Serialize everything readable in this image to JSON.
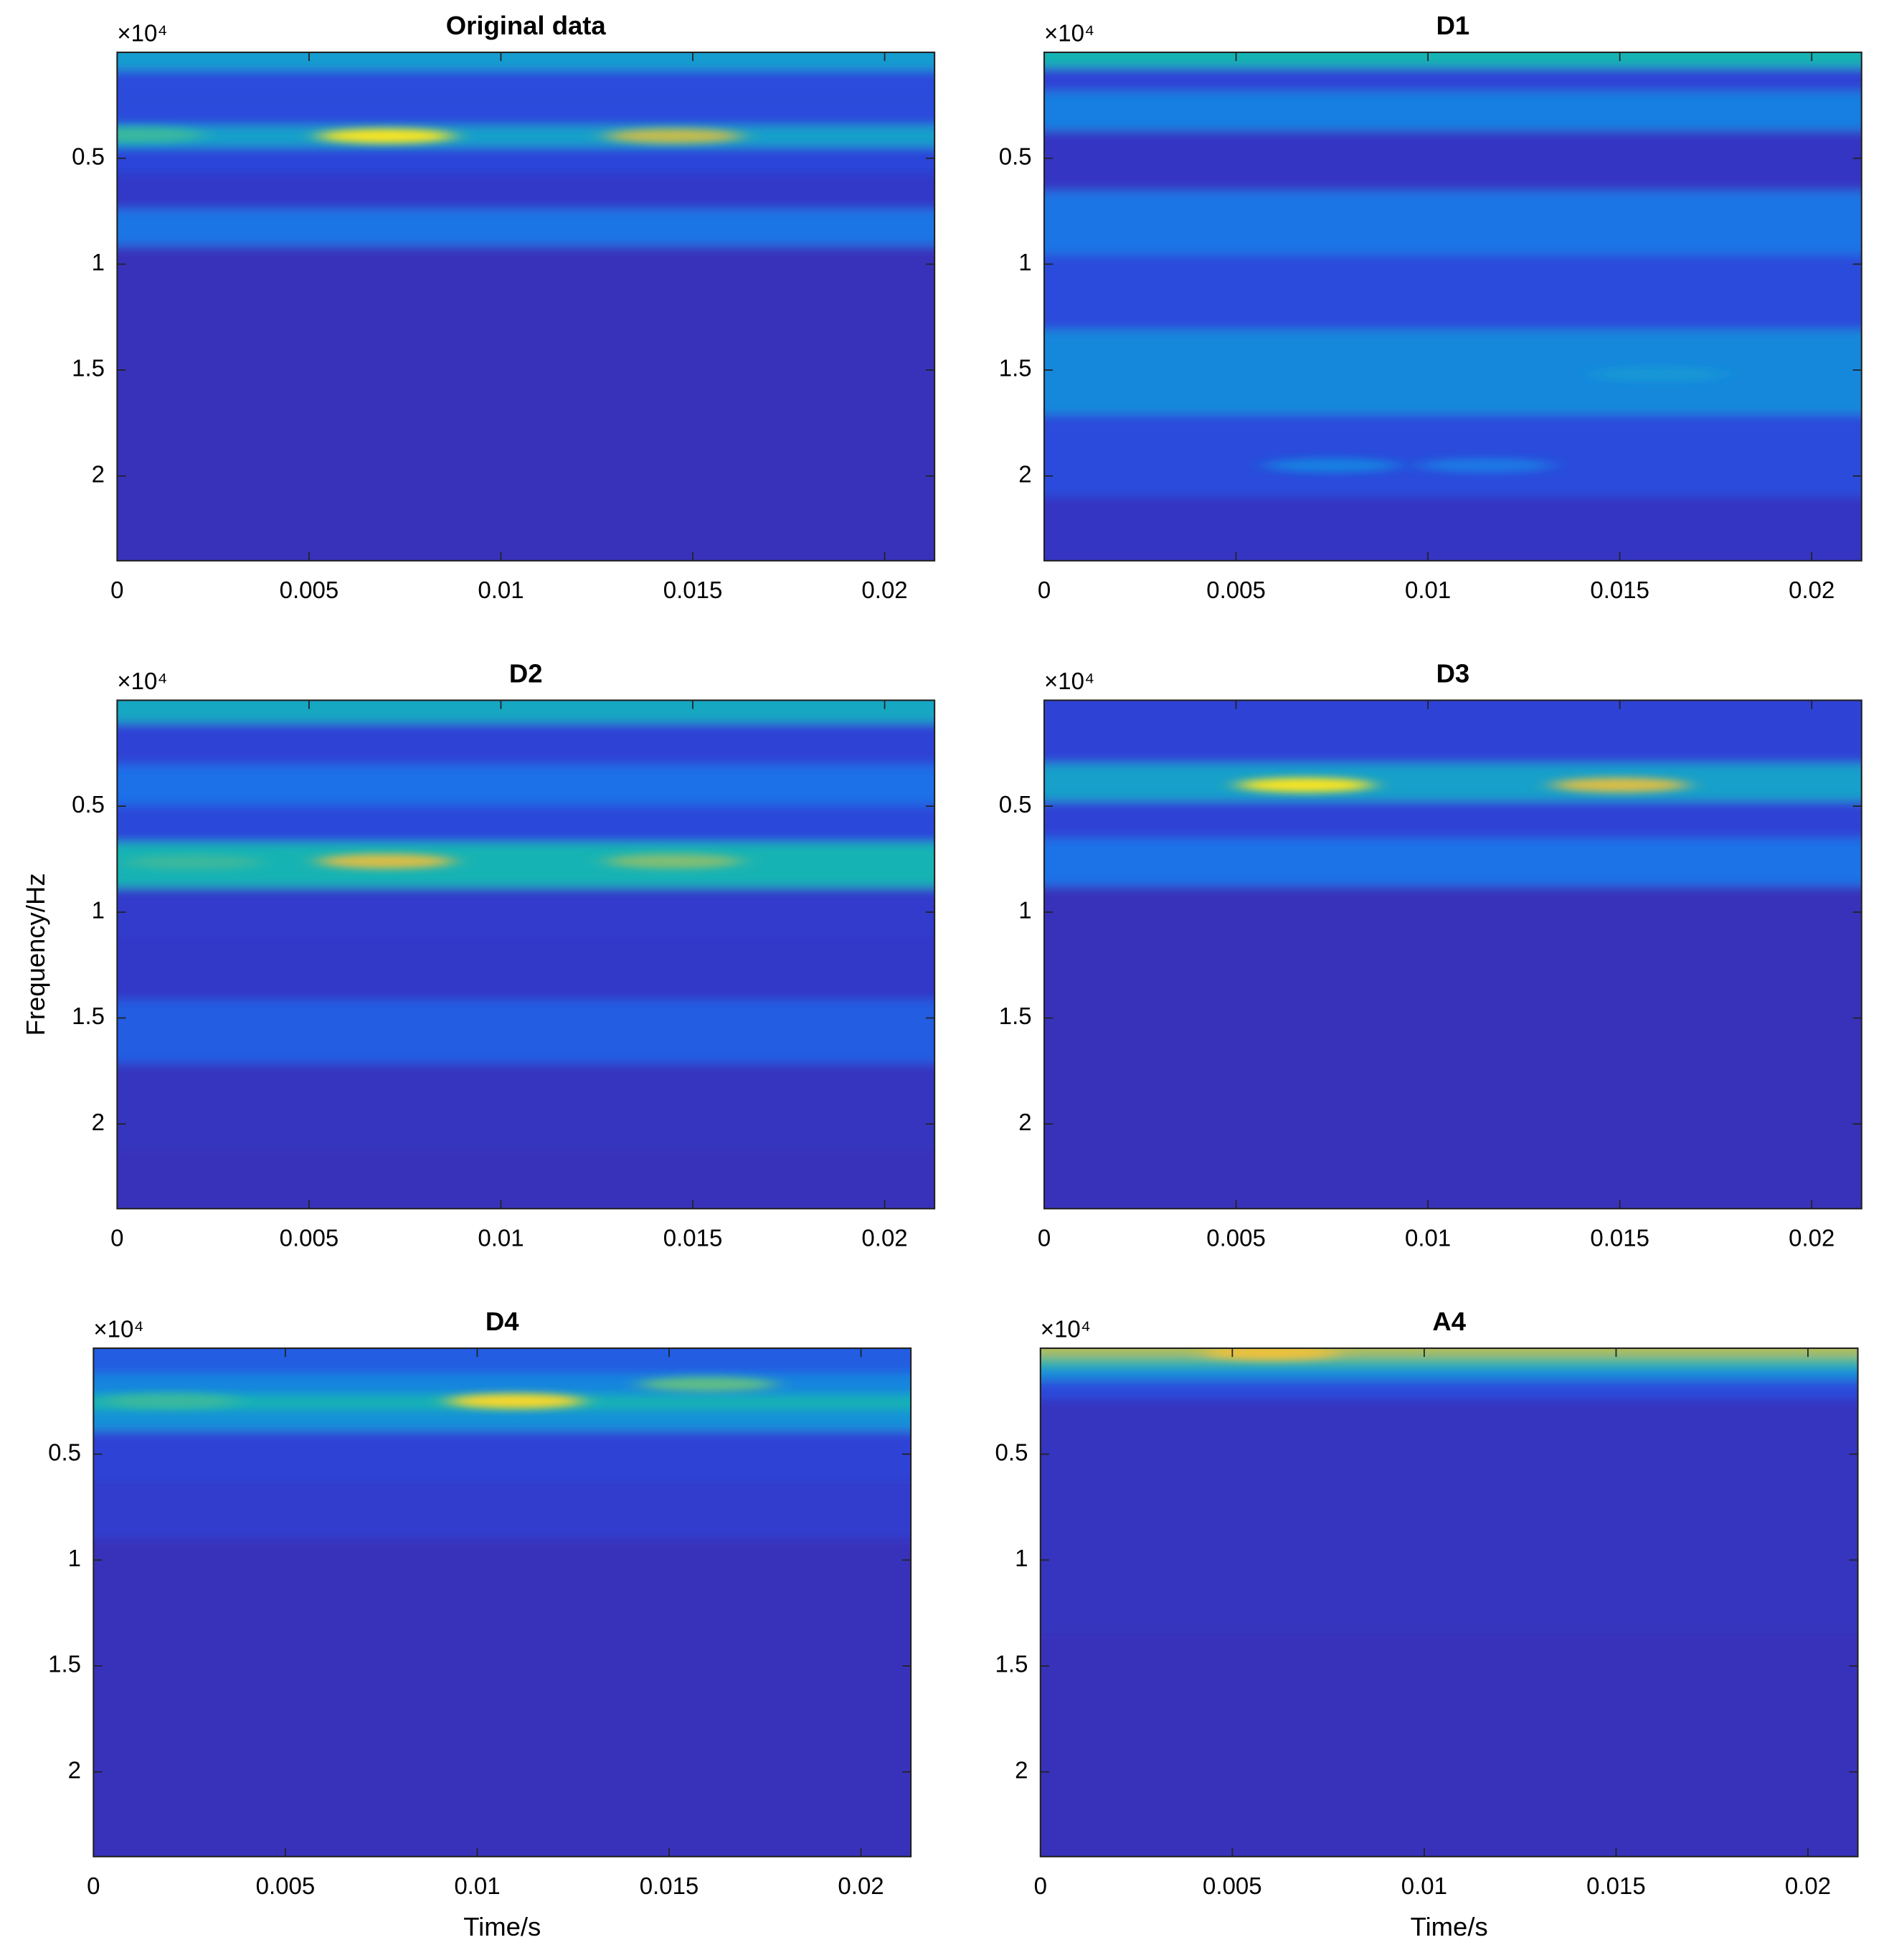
{
  "colorscale": [
    "#3e26a8",
    "#2d43d8",
    "#1b6fe8",
    "#1596d6",
    "#17b3b4",
    "#70bf7c",
    "#c5bc4e",
    "#f6c23a",
    "#f9fb0e"
  ],
  "chart_data": [
    {
      "type": "heatmap",
      "title": "Original data",
      "y_exponent": "×10⁴",
      "yreverse": true,
      "xlim": [
        0,
        0.0213
      ],
      "ylim": [
        0,
        24000
      ],
      "xticks": [
        0,
        0.005,
        0.01,
        0.015,
        0.02
      ],
      "yticks": [
        {
          "value": 5000,
          "label": "0.5"
        },
        {
          "value": 10000,
          "label": "1"
        },
        {
          "value": 15000,
          "label": "1.5"
        },
        {
          "value": 20000,
          "label": "2"
        }
      ],
      "y": [
        200,
        1500,
        3000,
        3950,
        5000,
        6500,
        8300,
        10000,
        24000
      ],
      "values": [
        0.4,
        0.15,
        0.15,
        0.42,
        0.13,
        0.08,
        0.27,
        0.05,
        0.05
      ],
      "spots": {
        "x": [
          0.0005,
          0.007,
          0.0145
        ],
        "y": [
          3900,
          3950,
          3950
        ],
        "values": [
          0.55,
          0.95,
          0.75
        ]
      }
    },
    {
      "type": "heatmap",
      "title": "D1",
      "y_exponent": "×10⁴",
      "yreverse": true,
      "xlim": [
        0,
        0.0213
      ],
      "ylim": [
        0,
        24000
      ],
      "xticks": [
        0,
        0.005,
        0.01,
        0.015,
        0.02
      ],
      "yticks": [
        {
          "value": 5000,
          "label": "0.5"
        },
        {
          "value": 10000,
          "label": "1"
        },
        {
          "value": 15000,
          "label": "1.5"
        },
        {
          "value": 20000,
          "label": "2"
        }
      ],
      "y": [
        150,
        1300,
        2400,
        5000,
        8100,
        11000,
        15200,
        19000,
        23000
      ],
      "values": [
        0.5,
        0.12,
        0.3,
        0.07,
        0.27,
        0.15,
        0.33,
        0.15,
        0.07
      ],
      "spots": {
        "x": [
          0.0075,
          0.0115,
          0.016
        ],
        "y": [
          19500,
          19500,
          15200
        ],
        "values": [
          0.3,
          0.28,
          0.38
        ]
      }
    },
    {
      "type": "heatmap",
      "title": "D2",
      "y_exponent": "×10⁴",
      "yreverse": true,
      "xlim": [
        0,
        0.0213
      ],
      "ylim": [
        0,
        24000
      ],
      "xticks": [
        0,
        0.005,
        0.01,
        0.015,
        0.02
      ],
      "yticks": [
        {
          "value": 5000,
          "label": "0.5"
        },
        {
          "value": 10000,
          "label": "1"
        },
        {
          "value": 15000,
          "label": "1.5"
        },
        {
          "value": 20000,
          "label": "2"
        }
      ],
      "ylabel": "Frequency/Hz",
      "y": [
        150,
        2000,
        4100,
        5800,
        7650,
        10000,
        12500,
        15800,
        18500,
        24000
      ],
      "values": [
        0.45,
        0.12,
        0.25,
        0.14,
        0.5,
        0.09,
        0.08,
        0.2,
        0.06,
        0.05
      ],
      "spots": {
        "x": [
          0.007,
          0.0145,
          0.002
        ],
        "y": [
          7600,
          7600,
          7650
        ],
        "values": [
          0.8,
          0.65,
          0.55
        ]
      }
    },
    {
      "type": "heatmap",
      "title": "D3",
      "y_exponent": "×10⁴",
      "yreverse": true,
      "xlim": [
        0,
        0.0213
      ],
      "ylim": [
        0,
        24000
      ],
      "xticks": [
        0,
        0.005,
        0.01,
        0.015,
        0.02
      ],
      "yticks": [
        {
          "value": 5000,
          "label": "0.5"
        },
        {
          "value": 10000,
          "label": "1"
        },
        {
          "value": 15000,
          "label": "1.5"
        },
        {
          "value": 20000,
          "label": "2"
        }
      ],
      "y": [
        200,
        2000,
        4000,
        5500,
        7550,
        10000,
        24000
      ],
      "values": [
        0.12,
        0.12,
        0.42,
        0.12,
        0.26,
        0.05,
        0.05
      ],
      "spots": {
        "x": [
          0.0068,
          0.015
        ],
        "y": [
          4000,
          4000
        ],
        "values": [
          0.95,
          0.8
        ]
      }
    },
    {
      "type": "heatmap",
      "title": "D4",
      "y_exponent": "×10⁴",
      "yreverse": true,
      "xlim": [
        0,
        0.0213
      ],
      "ylim": [
        0,
        24000
      ],
      "xticks": [
        0,
        0.005,
        0.01,
        0.015,
        0.02
      ],
      "yticks": [
        {
          "value": 5000,
          "label": "0.5"
        },
        {
          "value": 10000,
          "label": "1"
        },
        {
          "value": 15000,
          "label": "1.5"
        },
        {
          "value": 20000,
          "label": "2"
        }
      ],
      "xlabel": "Time/s",
      "y": [
        500,
        1900,
        2500,
        3300,
        4500,
        8000,
        10000,
        24000
      ],
      "values": [
        0.2,
        0.32,
        0.5,
        0.36,
        0.12,
        0.1,
        0.05,
        0.05
      ],
      "spots": {
        "x": [
          0.011,
          0.016,
          0.002
        ],
        "y": [
          2500,
          1700,
          2500
        ],
        "values": [
          0.92,
          0.6,
          0.55
        ]
      }
    },
    {
      "type": "heatmap",
      "title": "A4",
      "y_exponent": "×10⁴",
      "yreverse": true,
      "xlim": [
        0,
        0.0213
      ],
      "ylim": [
        0,
        24000
      ],
      "xticks": [
        0,
        0.005,
        0.01,
        0.015,
        0.02
      ],
      "yticks": [
        {
          "value": 5000,
          "label": "0.5"
        },
        {
          "value": 10000,
          "label": "1"
        },
        {
          "value": 15000,
          "label": "1.5"
        },
        {
          "value": 20000,
          "label": "2"
        }
      ],
      "xlabel": "Time/s",
      "y": [
        200,
        600,
        1200,
        1800,
        3000,
        24000
      ],
      "values": [
        0.72,
        0.55,
        0.35,
        0.15,
        0.06,
        0.05
      ],
      "spots": {
        "x": [
          0.006
        ],
        "y": [
          200
        ],
        "values": [
          0.85
        ]
      }
    }
  ]
}
